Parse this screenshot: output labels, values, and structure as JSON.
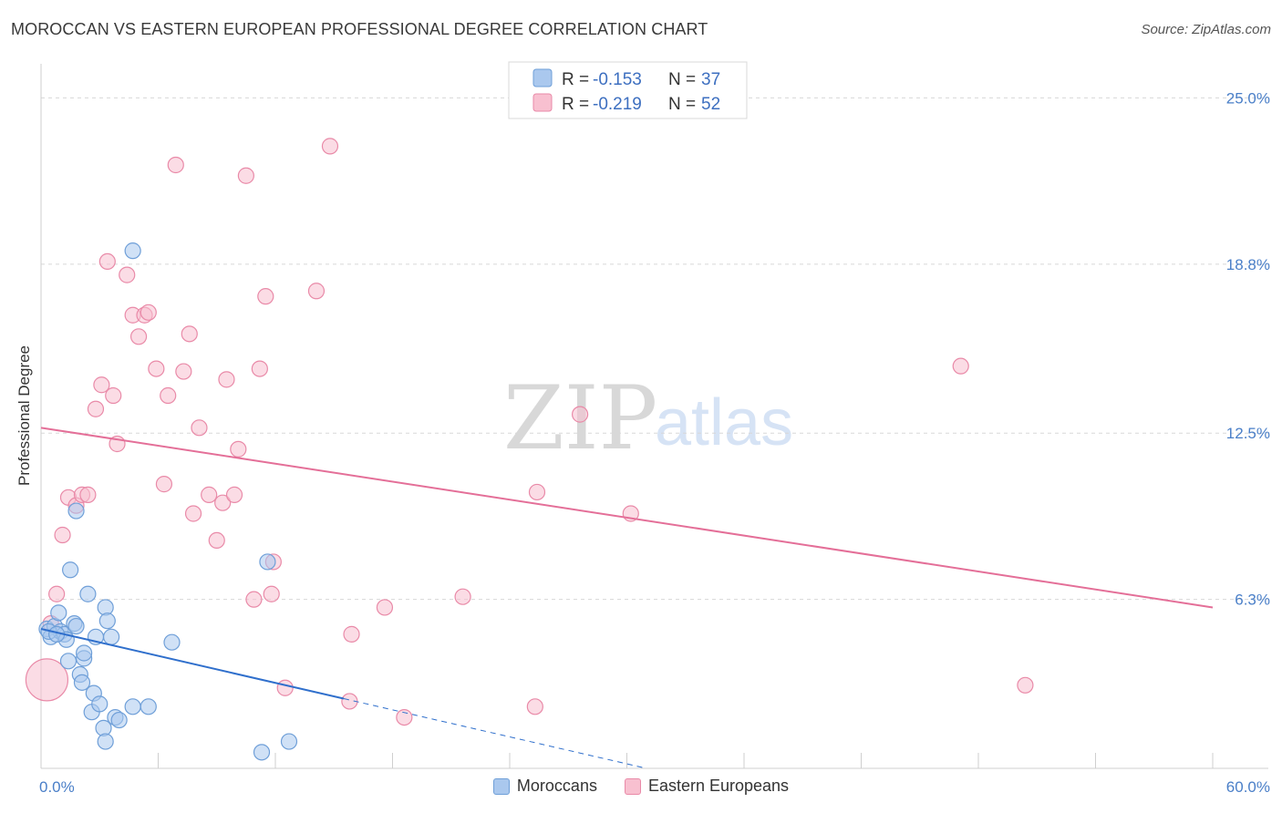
{
  "title": "MOROCCAN VS EASTERN EUROPEAN PROFESSIONAL DEGREE CORRELATION CHART",
  "source": "Source: ZipAtlas.com",
  "colors": {
    "blue_fill": "#aac8ee",
    "blue_stroke": "#6f9fd8",
    "blue_line": "#2f6fcc",
    "pink_fill": "#f8c0d0",
    "pink_stroke": "#e98aa8",
    "pink_line": "#e46f98",
    "tick_text": "#4a7fc8",
    "grid": "#d8d8d8"
  },
  "legend_top": {
    "rows": [
      {
        "r_label": "R = ",
        "r_value": "-0.153",
        "n_label": "N = ",
        "n_value": "37",
        "series": "moroccans"
      },
      {
        "r_label": "R = ",
        "r_value": "-0.219",
        "n_label": "N = ",
        "n_value": "52",
        "series": "eastern_europeans"
      }
    ]
  },
  "legend_bottom": {
    "moroccans": "Moroccans",
    "eastern_europeans": "Eastern Europeans"
  },
  "watermark": {
    "zip": "ZIP",
    "atlas": "atlas"
  },
  "chart_data": {
    "type": "scatter",
    "title": "MOROCCAN VS EASTERN EUROPEAN PROFESSIONAL DEGREE CORRELATION CHART",
    "xlabel": "",
    "ylabel": "Professional Degree",
    "xlim": [
      0,
      60
    ],
    "ylim": [
      0,
      26
    ],
    "x_tick_labels": [
      "0.0%",
      "60.0%"
    ],
    "y_ticks": [
      6.3,
      12.5,
      18.8,
      25.0
    ],
    "y_tick_labels": [
      "6.3%",
      "12.5%",
      "18.8%",
      "25.0%"
    ],
    "series": [
      {
        "name": "Moroccans",
        "R": -0.153,
        "N": 37,
        "trend": {
          "x0": 0,
          "y0": 5.2,
          "x1": 15.5,
          "y1": 2.6,
          "dashed_to_x": 31.0
        },
        "points": [
          [
            0.3,
            5.2
          ],
          [
            0.5,
            4.9
          ],
          [
            0.7,
            5.3
          ],
          [
            0.9,
            5.8
          ],
          [
            1.0,
            5.1
          ],
          [
            1.2,
            5.0
          ],
          [
            1.3,
            4.8
          ],
          [
            1.4,
            4.0
          ],
          [
            1.5,
            7.4
          ],
          [
            1.7,
            5.4
          ],
          [
            1.8,
            5.3
          ],
          [
            1.8,
            9.6
          ],
          [
            2.0,
            3.5
          ],
          [
            2.1,
            3.2
          ],
          [
            2.2,
            4.1
          ],
          [
            2.2,
            4.3
          ],
          [
            2.4,
            6.5
          ],
          [
            2.6,
            2.1
          ],
          [
            2.7,
            2.8
          ],
          [
            2.8,
            4.9
          ],
          [
            3.0,
            2.4
          ],
          [
            3.2,
            1.5
          ],
          [
            3.3,
            1.0
          ],
          [
            3.3,
            6.0
          ],
          [
            3.4,
            5.5
          ],
          [
            3.6,
            4.9
          ],
          [
            3.8,
            1.9
          ],
          [
            4.0,
            1.8
          ],
          [
            4.7,
            2.3
          ],
          [
            4.7,
            19.3
          ],
          [
            5.5,
            2.3
          ],
          [
            6.7,
            4.7
          ],
          [
            11.3,
            0.6
          ],
          [
            11.6,
            7.7
          ],
          [
            12.7,
            1.0
          ],
          [
            0.4,
            5.1
          ],
          [
            0.8,
            5.0
          ]
        ]
      },
      {
        "name": "Eastern Europeans",
        "R": -0.219,
        "N": 52,
        "trend": {
          "x0": 0,
          "y0": 12.7,
          "x1": 60,
          "y1": 6.0
        },
        "points": [
          [
            0.5,
            5.4
          ],
          [
            0.8,
            6.5
          ],
          [
            1.1,
            8.7
          ],
          [
            1.4,
            10.1
          ],
          [
            1.8,
            9.8
          ],
          [
            2.1,
            10.2
          ],
          [
            2.4,
            10.2
          ],
          [
            2.8,
            13.4
          ],
          [
            3.1,
            14.3
          ],
          [
            3.4,
            18.9
          ],
          [
            3.7,
            13.9
          ],
          [
            3.9,
            12.1
          ],
          [
            4.4,
            18.4
          ],
          [
            4.7,
            16.9
          ],
          [
            5.0,
            16.1
          ],
          [
            5.3,
            16.9
          ],
          [
            5.5,
            17.0
          ],
          [
            5.9,
            14.9
          ],
          [
            6.3,
            10.6
          ],
          [
            6.5,
            13.9
          ],
          [
            6.9,
            22.5
          ],
          [
            7.3,
            14.8
          ],
          [
            7.6,
            16.2
          ],
          [
            7.8,
            9.5
          ],
          [
            8.1,
            12.7
          ],
          [
            8.6,
            10.2
          ],
          [
            9.0,
            8.5
          ],
          [
            9.3,
            9.9
          ],
          [
            9.5,
            14.5
          ],
          [
            9.9,
            10.2
          ],
          [
            10.1,
            11.9
          ],
          [
            10.5,
            22.1
          ],
          [
            10.9,
            6.3
          ],
          [
            11.2,
            14.9
          ],
          [
            11.5,
            17.6
          ],
          [
            11.8,
            6.5
          ],
          [
            11.9,
            7.7
          ],
          [
            12.5,
            3.0
          ],
          [
            14.1,
            17.8
          ],
          [
            14.8,
            23.2
          ],
          [
            15.8,
            2.5
          ],
          [
            15.9,
            5.0
          ],
          [
            17.6,
            6.0
          ],
          [
            18.6,
            1.9
          ],
          [
            21.6,
            6.4
          ],
          [
            25.3,
            2.3
          ],
          [
            25.4,
            10.3
          ],
          [
            27.6,
            13.2
          ],
          [
            30.2,
            9.5
          ],
          [
            47.1,
            15.0
          ],
          [
            50.4,
            3.1
          ],
          [
            0.3,
            3.3
          ]
        ]
      }
    ]
  }
}
